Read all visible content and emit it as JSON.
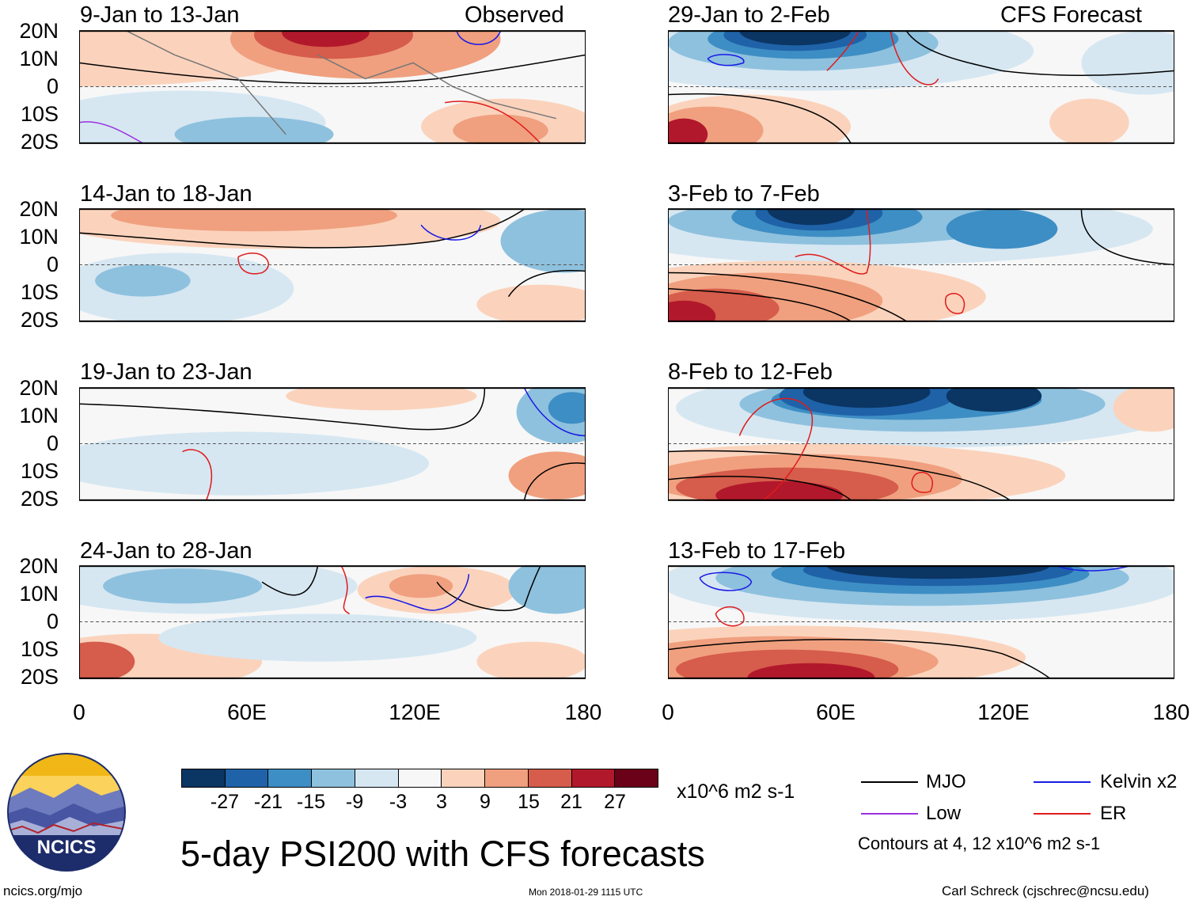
{
  "header": {
    "observed_label": "Observed",
    "forecast_label": "CFS Forecast"
  },
  "axes": {
    "lat_labels": [
      "20N",
      "10N",
      "0",
      "10S",
      "20S"
    ],
    "lon_labels": [
      "0",
      "60E",
      "120E",
      "180"
    ]
  },
  "panels": [
    {
      "period": "9-Jan to 13-Jan",
      "type": "observed"
    },
    {
      "period": "14-Jan to 18-Jan",
      "type": "observed"
    },
    {
      "period": "19-Jan to 23-Jan",
      "type": "observed"
    },
    {
      "period": "24-Jan to 28-Jan",
      "type": "observed"
    },
    {
      "period": "29-Jan to 2-Feb",
      "type": "forecast"
    },
    {
      "period": "3-Feb to 7-Feb",
      "type": "forecast"
    },
    {
      "period": "8-Feb to 12-Feb",
      "type": "forecast"
    },
    {
      "period": "13-Feb to 17-Feb",
      "type": "forecast"
    }
  ],
  "colorbar": {
    "labels": [
      "-27",
      "-21",
      "-15",
      "-9",
      "-3",
      "3",
      "9",
      "15",
      "21",
      "27"
    ],
    "colors": [
      "#0b3563",
      "#1f62a8",
      "#3d8ec4",
      "#8ec1de",
      "#d6e7f2",
      "#f7f7f7",
      "#fbd3bc",
      "#f0a07f",
      "#d65c4b",
      "#b2182b",
      "#6b0019"
    ],
    "units": "x10^6 m2 s-1"
  },
  "legend": {
    "items": [
      {
        "name": "MJO",
        "color": "#000000"
      },
      {
        "name": "Kelvin x2",
        "color": "#1a1ae6"
      },
      {
        "name": "Low",
        "color": "#9b30e0"
      },
      {
        "name": "ER",
        "color": "#e01a1a"
      }
    ],
    "contours_note": "Contours at 4, 12 x10^6 m2 s-1"
  },
  "logo_text": "NCICS",
  "main_title": "5-day PSI200 with CFS forecasts",
  "footer": {
    "url": "ncics.org/mjo",
    "timestamp": "Mon 2018-01-29 1115 UTC",
    "credit": "Carl Schreck (cjschrec@ncsu.edu)"
  },
  "chart_data": {
    "type": "heatmap",
    "title": "5-day PSI200 with CFS forecasts",
    "variable": "200-hPa streamfunction anomaly",
    "units": "x10^6 m2 s-1",
    "x_range": [
      0,
      180
    ],
    "y_range": [
      -20,
      20
    ],
    "xticks": [
      "0",
      "60E",
      "120E",
      "180"
    ],
    "yticks": [
      "20N",
      "10N",
      "0",
      "10S",
      "20S"
    ],
    "color_levels": [
      -27,
      -21,
      -15,
      -9,
      -3,
      3,
      9,
      15,
      21,
      27
    ],
    "contour_levels": [
      4,
      12
    ],
    "contour_series": [
      "MJO",
      "Kelvin x2",
      "Low",
      "ER"
    ],
    "panels": [
      "9-Jan to 13-Jan",
      "14-Jan to 18-Jan",
      "19-Jan to 23-Jan",
      "24-Jan to 28-Jan",
      "29-Jan to 2-Feb",
      "3-Feb to 7-Feb",
      "8-Feb to 12-Feb",
      "13-Feb to 17-Feb"
    ]
  }
}
